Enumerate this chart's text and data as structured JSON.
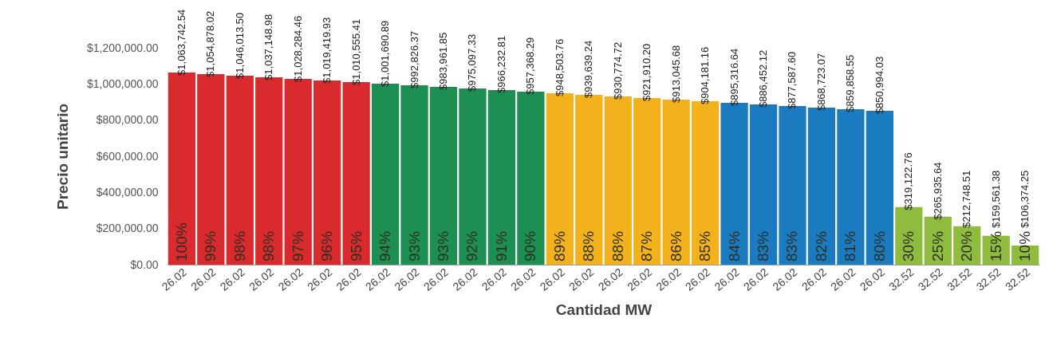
{
  "chart_data": {
    "type": "bar",
    "xlabel": "Cantidad MW",
    "ylabel": "Precio unitario",
    "categories": [
      "26.02",
      "26.02",
      "26.02",
      "26.02",
      "26.02",
      "26.02",
      "26.02",
      "26.02",
      "26.02",
      "26.02",
      "26.02",
      "26.02",
      "26.02",
      "26.02",
      "26.02",
      "26.02",
      "26.02",
      "26.02",
      "26.02",
      "26.02",
      "26.02",
      "26.02",
      "26.02",
      "26.02",
      "26.02",
      "32.52",
      "32.52",
      "32.52",
      "32.52",
      "32.52"
    ],
    "values": [
      1063742.54,
      1054878.02,
      1046013.5,
      1037148.98,
      1028284.46,
      1019419.93,
      1010555.41,
      1001690.89,
      992826.37,
      983961.85,
      975097.33,
      966232.81,
      957368.29,
      948503.76,
      939639.24,
      930774.72,
      921910.2,
      913045.68,
      904181.16,
      895316.64,
      886452.12,
      877587.6,
      868723.07,
      859858.55,
      850994.03,
      319122.76,
      265935.64,
      212748.51,
      159561.38,
      106374.25
    ],
    "value_labels": [
      "$1,063,742.54",
      "$1,054,878.02",
      "$1,046,013.50",
      "$1,037,148.98",
      "$1,028,284.46",
      "$1,019,419.93",
      "$1,010,555.41",
      "$1,001,690.89",
      "$992,826.37",
      "$983,961.85",
      "$975,097.33",
      "$966,232.81",
      "$957,368.29",
      "$948,503.76",
      "$939,639.24",
      "$930,774.72",
      "$921,910.20",
      "$913,045.68",
      "$904,181.16",
      "$895,316.64",
      "$886,452.12",
      "$877,587.60",
      "$868,723.07",
      "$859,858.55",
      "$850,994.03",
      "$319,122.76",
      "$265,935.64",
      "$212,748.51",
      "$159,561.38",
      "$106,374.25"
    ],
    "colors": [
      "#d92b2e",
      "#d92b2e",
      "#d92b2e",
      "#d92b2e",
      "#d92b2e",
      "#d92b2e",
      "#d92b2e",
      "#1e8f52",
      "#1e8f52",
      "#1e8f52",
      "#1e8f52",
      "#1e8f52",
      "#1e8f52",
      "#f3b21c",
      "#f3b21c",
      "#f3b21c",
      "#f3b21c",
      "#f3b21c",
      "#f3b21c",
      "#1a7bc0",
      "#1a7bc0",
      "#1a7bc0",
      "#1a7bc0",
      "#1a7bc0",
      "#1a7bc0",
      "#8fbb3e",
      "#8fbb3e",
      "#8fbb3e",
      "#8fbb3e",
      "#8fbb3e"
    ],
    "annotations": [
      "100%",
      "99%",
      "98%",
      "98%",
      "97%",
      "96%",
      "95%",
      "94%",
      "93%",
      "93%",
      "92%",
      "91%",
      "90%",
      "89%",
      "88%",
      "88%",
      "87%",
      "86%",
      "85%",
      "84%",
      "83%",
      "83%",
      "82%",
      "81%",
      "80%",
      "30%",
      "25%",
      "20%",
      "15%",
      "10%"
    ],
    "ylim": [
      0,
      1200000
    ],
    "yticks": [
      {
        "value": 0,
        "label": "$0.00"
      },
      {
        "value": 200000,
        "label": "$200,000.00"
      },
      {
        "value": 400000,
        "label": "$400,000.00"
      },
      {
        "value": 600000,
        "label": "$600,000.00"
      },
      {
        "value": 800000,
        "label": "$800,000.00"
      },
      {
        "value": 1000000,
        "label": "$1,000,000.00"
      },
      {
        "value": 1200000,
        "label": "$1,200,000.00"
      }
    ],
    "grid": false
  }
}
